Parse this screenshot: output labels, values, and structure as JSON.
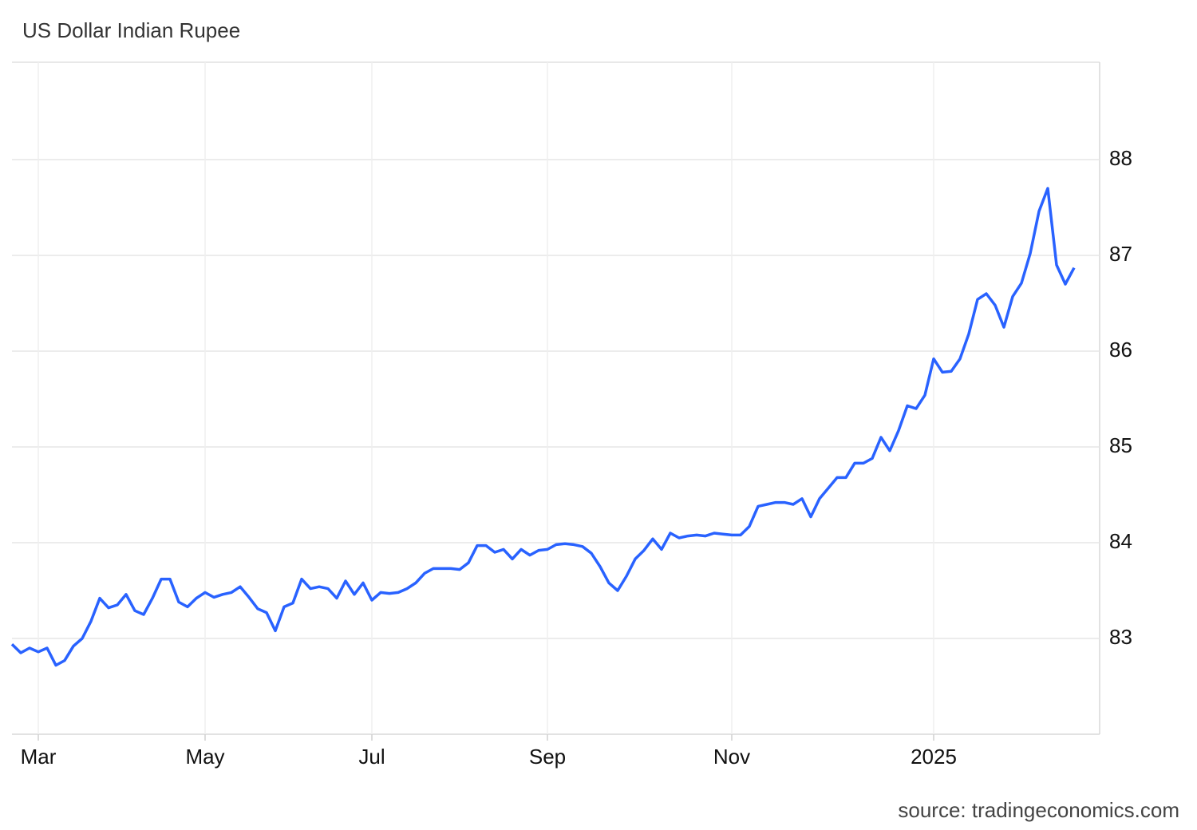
{
  "chart_data": {
    "type": "line",
    "title": "US Dollar Indian Rupee",
    "source": "source: tradingeconomics.com",
    "categories": [
      null,
      null,
      null,
      "Mar",
      null,
      null,
      null,
      null,
      null,
      null,
      null,
      null,
      null,
      null,
      null,
      null,
      null,
      null,
      null,
      null,
      null,
      null,
      "May",
      null,
      null,
      null,
      null,
      null,
      null,
      null,
      null,
      null,
      null,
      null,
      null,
      null,
      null,
      null,
      null,
      null,
      null,
      "Jul",
      null,
      null,
      null,
      null,
      null,
      null,
      null,
      null,
      null,
      null,
      null,
      null,
      null,
      null,
      null,
      null,
      null,
      null,
      null,
      "Sep",
      null,
      null,
      null,
      null,
      null,
      null,
      null,
      null,
      null,
      null,
      null,
      null,
      null,
      null,
      null,
      null,
      null,
      null,
      null,
      null,
      "Nov",
      null,
      null,
      null,
      null,
      null,
      null,
      null,
      null,
      null,
      null,
      null,
      null,
      null,
      null,
      null,
      null,
      null,
      null,
      null,
      null,
      null,
      null,
      "2025",
      null,
      null,
      null,
      null,
      null,
      null,
      null,
      null,
      null,
      null,
      null,
      null,
      null,
      null,
      null,
      null
    ],
    "values": [
      82.94,
      82.85,
      82.9,
      82.86,
      82.9,
      82.72,
      82.77,
      82.92,
      83.0,
      83.18,
      83.42,
      83.32,
      83.35,
      83.46,
      83.29,
      83.25,
      83.42,
      83.62,
      83.62,
      83.38,
      83.33,
      83.42,
      83.48,
      83.43,
      83.46,
      83.48,
      83.54,
      83.43,
      83.31,
      83.27,
      83.08,
      83.33,
      83.37,
      83.62,
      83.52,
      83.54,
      83.52,
      83.42,
      83.6,
      83.46,
      83.58,
      83.4,
      83.48,
      83.47,
      83.48,
      83.52,
      83.58,
      83.68,
      83.73,
      83.73,
      83.73,
      83.72,
      83.79,
      83.97,
      83.97,
      83.9,
      83.93,
      83.83,
      83.93,
      83.87,
      83.92,
      83.93,
      83.98,
      83.99,
      83.98,
      83.96,
      83.89,
      83.75,
      83.58,
      83.5,
      83.65,
      83.83,
      83.92,
      84.04,
      83.93,
      84.1,
      84.05,
      84.07,
      84.08,
      84.07,
      84.1,
      84.09,
      84.08,
      84.08,
      84.17,
      84.38,
      84.4,
      84.42,
      84.42,
      84.4,
      84.46,
      84.27,
      84.46,
      84.57,
      84.68,
      84.68,
      84.83,
      84.83,
      84.88,
      85.1,
      84.96,
      85.17,
      85.43,
      85.4,
      85.54,
      85.92,
      85.78,
      85.79,
      85.92,
      86.18,
      86.54,
      86.6,
      86.48,
      86.25,
      86.57,
      86.71,
      87.02,
      87.46,
      87.7,
      86.9,
      86.7,
      86.87
    ],
    "color": "#2962ff",
    "ylim": [
      82,
      89
    ],
    "yticks": [
      83,
      84,
      85,
      86,
      87,
      88
    ],
    "grid": true
  }
}
